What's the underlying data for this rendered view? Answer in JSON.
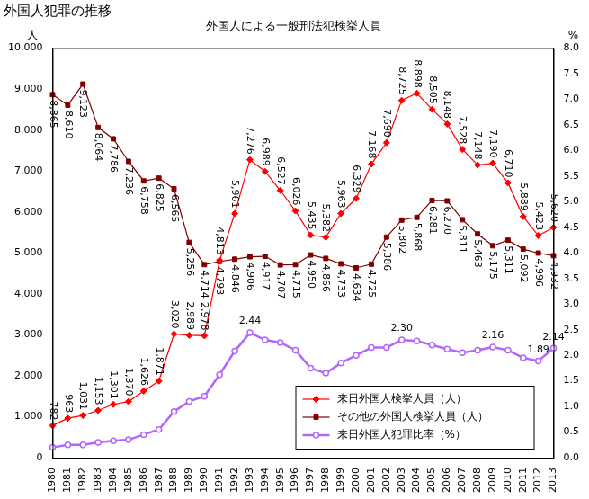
{
  "chart_data": {
    "type": "line",
    "title": "外国人犯罪の推移",
    "subtitle": "外国人による一般刑法犯検挙人員",
    "ylabel": "人",
    "y2label": "%",
    "categories": [
      "1980",
      "1981",
      "1982",
      "1983",
      "1984",
      "1985",
      "1986",
      "1987",
      "1988",
      "1989",
      "1990",
      "1991",
      "1992",
      "1993",
      "1994",
      "1995",
      "1996",
      "1997",
      "1998",
      "1999",
      "2000",
      "2001",
      "2002",
      "2003",
      "2004",
      "2005",
      "2006",
      "2007",
      "2008",
      "2009",
      "2010",
      "2011",
      "2012",
      "2013"
    ],
    "series": [
      {
        "name": "来日外国人検挙人員（人）",
        "color": "#ff0000",
        "marker": "diamond",
        "line_style": "solid",
        "axis": "y",
        "values": [
          782,
          963,
          1031,
          1153,
          1301,
          1370,
          1626,
          1871,
          3020,
          2989,
          2978,
          4813,
          5961,
          7276,
          6989,
          6527,
          6026,
          5435,
          5382,
          5963,
          6329,
          7168,
          7690,
          8725,
          8898,
          8505,
          8148,
          7528,
          7148,
          7190,
          6710,
          5889,
          5423,
          5620
        ],
        "value_labels": [
          "782",
          "963",
          "1,031",
          "1,153",
          "1,301",
          "1,370",
          "1,626",
          "1,871",
          "3,020",
          "2,989",
          "2,978",
          "4,813",
          "5,961",
          "7,276",
          "6,989",
          "6,527",
          "6,026",
          "5,435",
          "5,382",
          "5,963",
          "6,329",
          "7,168",
          "7,690",
          "8,725",
          "8,898",
          "8,505",
          "8,148",
          "7,528",
          "7,148",
          "7,190",
          "6,710",
          "5,889",
          "5,423",
          "5,620"
        ]
      },
      {
        "name": "その他の外国人検挙人員（人）",
        "color": "#800000",
        "marker": "square",
        "line_style": "solid",
        "axis": "y",
        "values": [
          8865,
          8610,
          9123,
          8064,
          7786,
          7236,
          6758,
          6825,
          6565,
          5256,
          4714,
          4793,
          4846,
          4906,
          4917,
          4707,
          4715,
          4950,
          4866,
          4733,
          4634,
          4725,
          5386,
          5802,
          5868,
          6281,
          6270,
          5811,
          5463,
          5175,
          5311,
          5092,
          4996,
          4932
        ],
        "value_labels": [
          "8,865",
          "8,610",
          "9,123",
          "8,064",
          "7,786",
          "7,236",
          "6,758",
          "6,825",
          "6,565",
          "5,256",
          "4,714",
          "4,793",
          "4,846",
          "4,906",
          "4,917",
          "4,707",
          "4,715",
          "4,950",
          "4,866",
          "4,733",
          "4,634",
          "4,725",
          "5,386",
          "5,802",
          "5,868",
          "6,281",
          "6,270",
          "5,811",
          "5,463",
          "5,175",
          "5,311",
          "5,092",
          "4,996",
          "4,932"
        ]
      },
      {
        "name": "来日外国人犯罪比率（%）",
        "color": "#b266ff",
        "marker": "circle",
        "line_style": "solid",
        "axis": "y2",
        "values": [
          0.2,
          0.25,
          0.25,
          0.3,
          0.33,
          0.35,
          0.45,
          0.55,
          0.9,
          1.1,
          1.2,
          1.62,
          2.08,
          2.44,
          2.3,
          2.25,
          2.1,
          1.75,
          1.65,
          1.85,
          2.0,
          2.15,
          2.15,
          2.3,
          2.28,
          2.2,
          2.12,
          2.05,
          2.1,
          2.16,
          2.1,
          1.95,
          1.89,
          2.14
        ],
        "value_labels": [
          null,
          null,
          null,
          null,
          null,
          null,
          null,
          null,
          null,
          null,
          null,
          null,
          null,
          "2.44",
          null,
          null,
          null,
          null,
          null,
          null,
          null,
          null,
          null,
          "2.30",
          null,
          null,
          null,
          null,
          null,
          "2.16",
          null,
          null,
          "1.89",
          "2.14"
        ]
      }
    ],
    "ylim": [
      0,
      10000
    ],
    "yticks": [
      0,
      {
        "value": 1000,
        "label": "1,000"
      },
      {
        "value": 2000,
        "label": "2,000"
      },
      {
        "value": 3000,
        "label": "3,000"
      },
      {
        "value": 4000,
        "label": "4,000"
      },
      {
        "value": 5000,
        "label": "5,000"
      },
      {
        "value": 6000,
        "label": "6,000"
      },
      {
        "value": 7000,
        "label": "7,000"
      },
      {
        "value": 8000,
        "label": "8,000"
      },
      {
        "value": 9000,
        "label": "9,000"
      },
      {
        "value": 10000,
        "label": "10,000"
      }
    ],
    "y2lim": [
      0,
      8
    ],
    "y2ticks": [
      {
        "value": 0,
        "label": "0.0"
      },
      0.5,
      {
        "value": 1,
        "label": "1.0"
      },
      1.5,
      {
        "value": 2,
        "label": "2.0"
      },
      2.5,
      {
        "value": 3,
        "label": "3.0"
      },
      3.5,
      {
        "value": 4,
        "label": "4.0"
      },
      4.5,
      {
        "value": 5,
        "label": "5.0"
      },
      5.5,
      {
        "value": 6,
        "label": "6.0"
      },
      6.5,
      {
        "value": 7,
        "label": "7.0"
      },
      7.5,
      {
        "value": 8,
        "label": "8.0"
      }
    ],
    "grid": false,
    "legend": "lower right",
    "data_labels": true
  }
}
